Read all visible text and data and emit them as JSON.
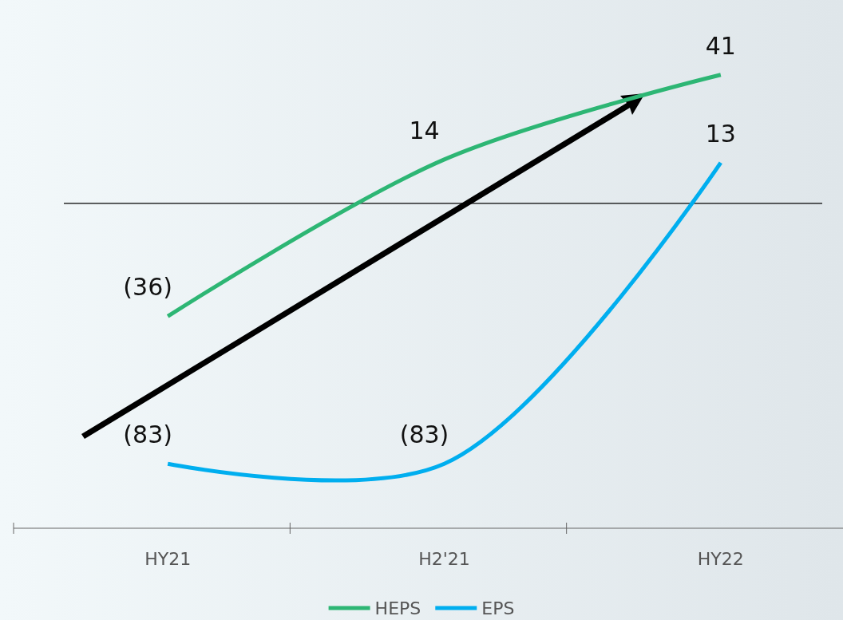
{
  "chart_data": {
    "type": "line",
    "categories": [
      "HY21",
      "H2'21",
      "HY22"
    ],
    "series": [
      {
        "name": "HEPS",
        "color": "#2db674",
        "values": [
          -36,
          14,
          41
        ],
        "value_labels": [
          "(36)",
          "14",
          "41"
        ]
      },
      {
        "name": "EPS",
        "color": "#00aeef",
        "values": [
          -83,
          -83,
          13
        ],
        "value_labels": [
          "(83)",
          "(83)",
          "13"
        ]
      }
    ],
    "ref_lines": [
      {
        "axis": "y",
        "value": 0,
        "color": "#000000"
      }
    ],
    "legend": "bottom",
    "marker": "none",
    "line_style": "solid"
  }
}
